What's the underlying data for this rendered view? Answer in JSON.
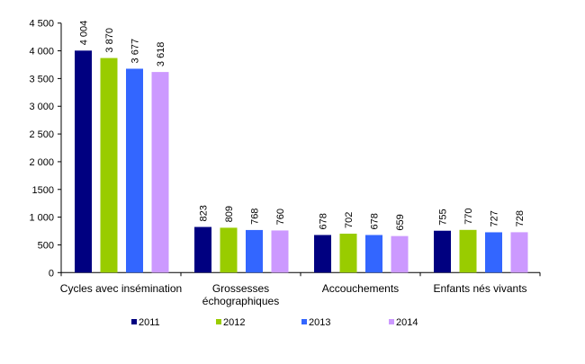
{
  "chart_data": {
    "type": "bar",
    "categories": [
      "Cycles avec insémination",
      "Grossesses échographiques",
      "Accouchements",
      "Enfants nés vivants"
    ],
    "category_lines": [
      [
        "Cycles avec insémination"
      ],
      [
        "Grossesses",
        "échographiques"
      ],
      [
        "Accouchements"
      ],
      [
        "Enfants nés vivants"
      ]
    ],
    "series": [
      {
        "name": "2011",
        "color": "#000080",
        "values": [
          4004,
          823,
          678,
          755
        ],
        "labels": [
          "4 004",
          "823",
          "678",
          "755"
        ]
      },
      {
        "name": "2012",
        "color": "#99CC00",
        "values": [
          3870,
          809,
          702,
          770
        ],
        "labels": [
          "3 870",
          "809",
          "702",
          "770"
        ]
      },
      {
        "name": "2013",
        "color": "#3366FF",
        "values": [
          3677,
          768,
          678,
          727
        ],
        "labels": [
          "3 677",
          "768",
          "678",
          "727"
        ]
      },
      {
        "name": "2014",
        "color": "#CC99FF",
        "values": [
          3618,
          760,
          659,
          728
        ],
        "labels": [
          "3 618",
          "760",
          "659",
          "728"
        ]
      }
    ],
    "yticks": [
      0,
      500,
      1000,
      1500,
      2000,
      2500,
      3000,
      3500,
      4000,
      4500
    ],
    "ytick_labels": [
      "0",
      "500",
      "1 000",
      "1500",
      "2 000",
      "2 500",
      "3 000",
      "3 500",
      "4 000",
      "4 500"
    ],
    "ylim": [
      0,
      4500
    ],
    "title": "",
    "xlabel": "",
    "ylabel": "",
    "grid": false,
    "legend_position": "bottom"
  }
}
